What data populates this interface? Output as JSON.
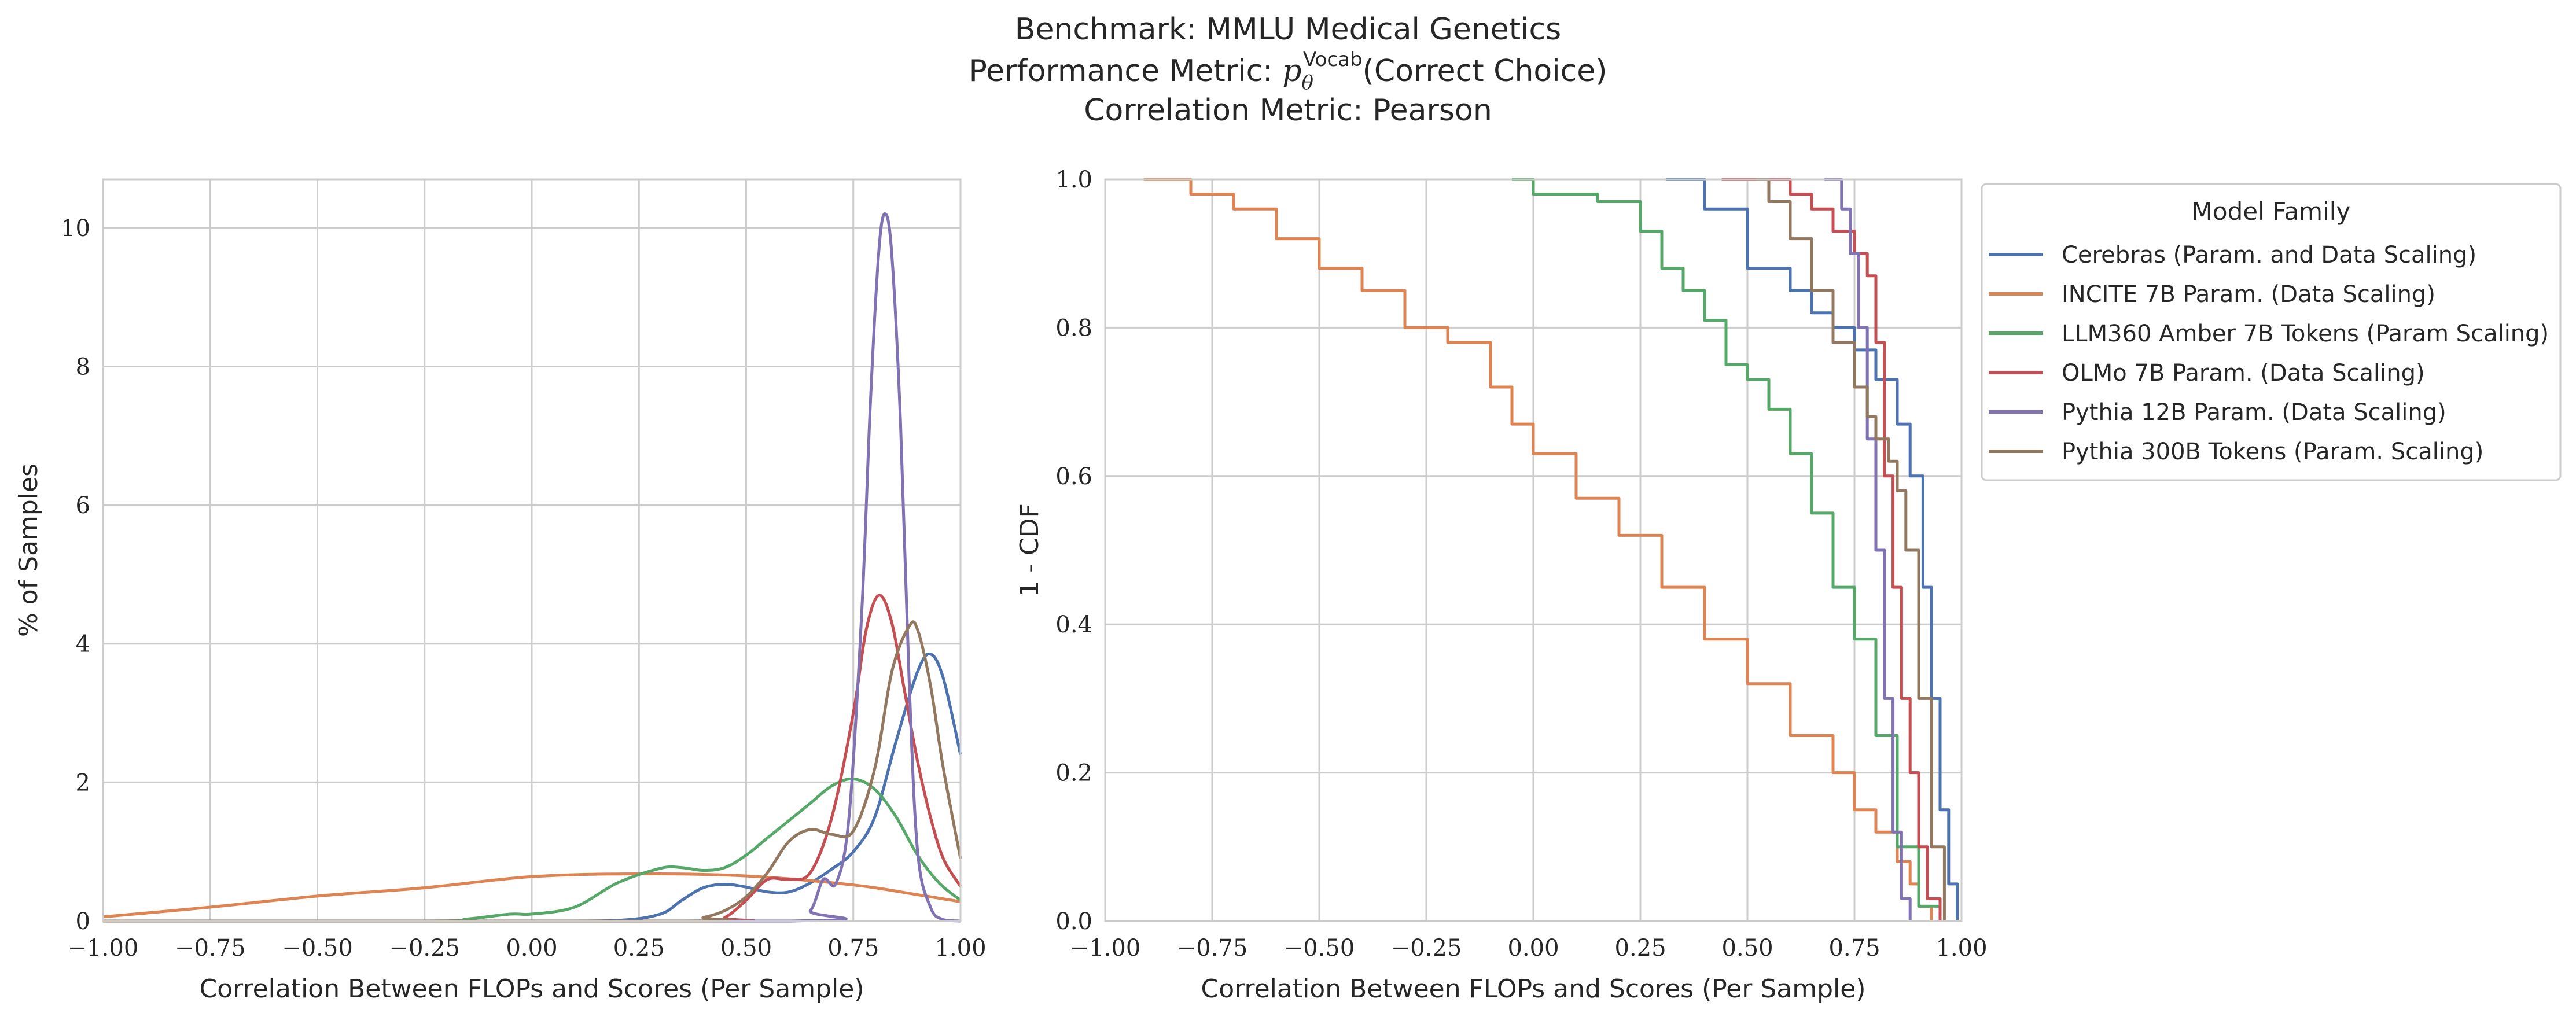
{
  "figure": {
    "title_lines": [
      "Benchmark: MMLU Medical Genetics",
      "Performance Metric: p_θ^Vocab(Correct Choice)",
      "Correlation Metric: Pearson"
    ],
    "title_line2_parts": {
      "prefix": "Performance Metric: ",
      "p": "p",
      "sub": "θ",
      "sup": "Vocab",
      "suffix": "(Correct Choice)"
    }
  },
  "colors": {
    "Cerebras (Param. and Data Scaling)": "#4c72b0",
    "INCITE 7B Param. (Data Scaling)": "#dd8452",
    "LLM360 Amber 7B Tokens (Param Scaling)": "#55a868",
    "OLMo 7B Param. (Data Scaling)": "#c44e52",
    "Pythia 12B Param. (Data Scaling)": "#8172b3",
    "Pythia 300B Tokens (Param. Scaling)": "#937860"
  },
  "legend": {
    "title": "Model Family",
    "placement": "outside right of second panel, top"
  },
  "chart_data": [
    {
      "type": "line",
      "subtype": "kde",
      "xlabel": "Correlation Between FLOPs and Scores (Per Sample)",
      "ylabel": "% of Samples",
      "xlim": [
        -1.0,
        1.0
      ],
      "ylim": [
        0,
        10.7
      ],
      "xticks": [
        -1.0,
        -0.75,
        -0.5,
        -0.25,
        0.0,
        0.25,
        0.5,
        0.75,
        1.0
      ],
      "xtick_labels": [
        "−1.00",
        "−0.75",
        "−0.50",
        "−0.25",
        "0.00",
        "0.25",
        "0.50",
        "0.75",
        "1.00"
      ],
      "yticks": [
        0,
        2,
        4,
        6,
        8,
        10
      ],
      "ytick_labels": [
        "0",
        "2",
        "4",
        "6",
        "8",
        "10"
      ],
      "grid": true,
      "series": [
        {
          "name": "Cerebras (Param. and Data Scaling)",
          "x": [
            -1.0,
            0.0,
            0.2,
            0.3,
            0.35,
            0.4,
            0.45,
            0.5,
            0.55,
            0.6,
            0.65,
            0.7,
            0.75,
            0.8,
            0.85,
            0.9,
            0.93,
            0.96,
            1.0
          ],
          "y": [
            0,
            0,
            0.01,
            0.1,
            0.3,
            0.48,
            0.53,
            0.49,
            0.42,
            0.42,
            0.55,
            0.75,
            1.0,
            1.5,
            2.6,
            3.6,
            3.85,
            3.5,
            2.4
          ]
        },
        {
          "name": "INCITE 7B Param. (Data Scaling)",
          "x": [
            -1.0,
            -0.75,
            -0.5,
            -0.25,
            0.0,
            0.25,
            0.5,
            0.75,
            0.9,
            1.0
          ],
          "y": [
            0.06,
            0.2,
            0.36,
            0.48,
            0.64,
            0.68,
            0.65,
            0.52,
            0.38,
            0.28
          ]
        },
        {
          "name": "LLM360 Amber 7B Tokens (Param Scaling)",
          "x": [
            -1.0,
            -0.25,
            -0.15,
            -0.05,
            0.0,
            0.1,
            0.2,
            0.3,
            0.35,
            0.4,
            0.45,
            0.5,
            0.55,
            0.6,
            0.65,
            0.7,
            0.75,
            0.8,
            0.85,
            0.9,
            0.95,
            1.0
          ],
          "y": [
            0,
            0,
            0.03,
            0.1,
            0.1,
            0.2,
            0.55,
            0.76,
            0.77,
            0.73,
            0.77,
            0.95,
            1.2,
            1.45,
            1.7,
            1.95,
            2.05,
            1.9,
            1.5,
            0.95,
            0.55,
            0.3
          ]
        },
        {
          "name": "OLMo 7B Param. (Data Scaling)",
          "x": [
            -1.0,
            0.4,
            0.45,
            0.5,
            0.55,
            0.6,
            0.65,
            0.7,
            0.75,
            0.78,
            0.81,
            0.84,
            0.87,
            0.9,
            0.93,
            0.96,
            1.0
          ],
          "y": [
            0,
            0,
            0.05,
            0.3,
            0.6,
            0.6,
            0.7,
            1.5,
            3.0,
            4.2,
            4.7,
            4.3,
            3.3,
            2.3,
            1.5,
            0.9,
            0.5
          ]
        },
        {
          "name": "Pythia 12B Param. (Data Scaling)",
          "x": [
            -1.0,
            0.6,
            0.65,
            0.68,
            0.71,
            0.74,
            0.77,
            0.79,
            0.81,
            0.825,
            0.84,
            0.86,
            0.88,
            0.9,
            0.93,
            0.96,
            1.0
          ],
          "y": [
            0,
            0,
            0.15,
            0.6,
            0.55,
            1.5,
            4.5,
            7.5,
            9.7,
            10.2,
            9.6,
            7.2,
            3.5,
            1.0,
            0.2,
            0.02,
            0
          ]
        },
        {
          "name": "Pythia 300B Tokens (Param. Scaling)",
          "x": [
            -1.0,
            0.35,
            0.4,
            0.45,
            0.5,
            0.55,
            0.6,
            0.65,
            0.7,
            0.75,
            0.8,
            0.84,
            0.88,
            0.9,
            0.93,
            0.96,
            1.0
          ],
          "y": [
            0,
            0,
            0.05,
            0.15,
            0.35,
            0.7,
            1.15,
            1.32,
            1.25,
            1.3,
            2.2,
            3.6,
            4.25,
            4.2,
            3.4,
            2.2,
            0.9
          ]
        }
      ]
    },
    {
      "type": "line",
      "subtype": "step",
      "xlabel": "Correlation Between FLOPs and Scores (Per Sample)",
      "ylabel": "1 - CDF",
      "xlim": [
        -1.0,
        1.0
      ],
      "ylim": [
        0.0,
        1.0
      ],
      "xticks": [
        -1.0,
        -0.75,
        -0.5,
        -0.25,
        0.0,
        0.25,
        0.5,
        0.75,
        1.0
      ],
      "xtick_labels": [
        "−1.00",
        "−0.75",
        "−0.50",
        "−0.25",
        "0.00",
        "0.25",
        "0.50",
        "0.75",
        "1.00"
      ],
      "yticks": [
        0.0,
        0.2,
        0.4,
        0.6,
        0.8,
        1.0
      ],
      "ytick_labels": [
        "0.0",
        "0.2",
        "0.4",
        "0.6",
        "0.8",
        "1.0"
      ],
      "grid": true,
      "series": [
        {
          "name": "Cerebras (Param. and Data Scaling)",
          "x": [
            0.31,
            0.4,
            0.5,
            0.6,
            0.65,
            0.7,
            0.75,
            0.8,
            0.85,
            0.88,
            0.91,
            0.93,
            0.95,
            0.97,
            0.99
          ],
          "y": [
            1.0,
            0.96,
            0.88,
            0.85,
            0.82,
            0.8,
            0.77,
            0.73,
            0.67,
            0.6,
            0.45,
            0.3,
            0.15,
            0.05,
            0.0
          ]
        },
        {
          "name": "INCITE 7B Param. (Data Scaling)",
          "x": [
            -0.91,
            -0.8,
            -0.7,
            -0.6,
            -0.5,
            -0.4,
            -0.3,
            -0.2,
            -0.1,
            -0.05,
            0.0,
            0.1,
            0.2,
            0.3,
            0.4,
            0.5,
            0.6,
            0.7,
            0.75,
            0.8,
            0.85,
            0.88,
            0.9,
            0.93
          ],
          "y": [
            1.0,
            0.98,
            0.96,
            0.92,
            0.88,
            0.85,
            0.8,
            0.78,
            0.72,
            0.67,
            0.63,
            0.57,
            0.52,
            0.45,
            0.38,
            0.32,
            0.25,
            0.2,
            0.15,
            0.12,
            0.08,
            0.05,
            0.02,
            0.0
          ]
        },
        {
          "name": "LLM360 Amber 7B Tokens (Param Scaling)",
          "x": [
            -0.05,
            0.0,
            0.15,
            0.25,
            0.3,
            0.35,
            0.4,
            0.45,
            0.5,
            0.55,
            0.6,
            0.65,
            0.7,
            0.75,
            0.8,
            0.85,
            0.9,
            0.95
          ],
          "y": [
            1.0,
            0.98,
            0.97,
            0.93,
            0.88,
            0.85,
            0.81,
            0.75,
            0.73,
            0.69,
            0.63,
            0.55,
            0.45,
            0.38,
            0.25,
            0.1,
            0.02,
            0.0
          ]
        },
        {
          "name": "OLMo 7B Param. (Data Scaling)",
          "x": [
            0.44,
            0.6,
            0.65,
            0.7,
            0.75,
            0.78,
            0.8,
            0.82,
            0.84,
            0.86,
            0.88,
            0.9,
            0.92,
            0.95
          ],
          "y": [
            1.0,
            0.98,
            0.96,
            0.93,
            0.9,
            0.87,
            0.78,
            0.6,
            0.45,
            0.3,
            0.2,
            0.1,
            0.03,
            0.0
          ]
        },
        {
          "name": "Pythia 12B Param. (Data Scaling)",
          "x": [
            0.68,
            0.72,
            0.74,
            0.76,
            0.78,
            0.8,
            0.82,
            0.84,
            0.86,
            0.88
          ],
          "y": [
            1.0,
            0.96,
            0.9,
            0.8,
            0.65,
            0.5,
            0.3,
            0.12,
            0.03,
            0.0
          ]
        },
        {
          "name": "Pythia 300B Tokens (Param. Scaling)",
          "x": [
            0.52,
            0.55,
            0.6,
            0.65,
            0.7,
            0.75,
            0.78,
            0.8,
            0.83,
            0.85,
            0.87,
            0.9,
            0.93,
            0.96
          ],
          "y": [
            1.0,
            0.97,
            0.92,
            0.85,
            0.78,
            0.72,
            0.68,
            0.65,
            0.62,
            0.58,
            0.5,
            0.3,
            0.1,
            0.0
          ]
        }
      ]
    }
  ]
}
